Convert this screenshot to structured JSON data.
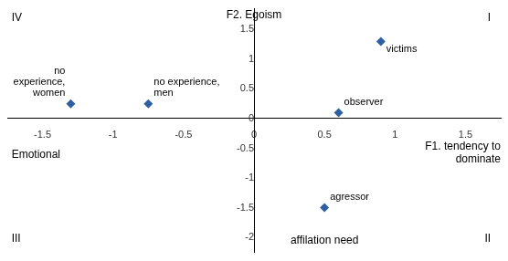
{
  "chart_data": {
    "type": "scatter",
    "series": [
      {
        "x": [
          -1.3,
          -0.75,
          0.6,
          0.9,
          0.5
        ],
        "values": [
          0.25,
          0.25,
          0.1,
          1.3,
          -1.5
        ],
        "point_labels": [
          "no\nexperience,\nwomen",
          "no experience,\nmen",
          "observer",
          "victims",
          "agressor"
        ],
        "color": "#2E5FA3",
        "marker": "diamond"
      }
    ],
    "xlim": [
      -1.75,
      1.75
    ],
    "ylim": [
      -2.25,
      1.85
    ],
    "xticks": [
      -1.5,
      -1,
      -0.5,
      0,
      0.5,
      1,
      1.5
    ],
    "yticks": [
      -2,
      -1.5,
      -1,
      -0.5,
      0,
      0.5,
      1,
      1.5
    ],
    "grid": false,
    "annotations": [
      {
        "text": "F2. Egoism",
        "x": 0.0,
        "y": 1.83
      },
      {
        "text": "affilation need",
        "x": 0.5,
        "y": -2.18
      },
      {
        "text": "Emotional",
        "x": -1.72,
        "y": -0.52
      },
      {
        "text": "F1. tendency to\ndominate",
        "x": 1.75,
        "y": -0.38
      },
      {
        "text": "I",
        "x": 1.68,
        "y": 1.78
      },
      {
        "text": "II",
        "x": 1.68,
        "y": -2.15
      },
      {
        "text": "III",
        "x": -1.72,
        "y": -2.15
      },
      {
        "text": "IV",
        "x": -1.72,
        "y": 1.78
      }
    ]
  }
}
